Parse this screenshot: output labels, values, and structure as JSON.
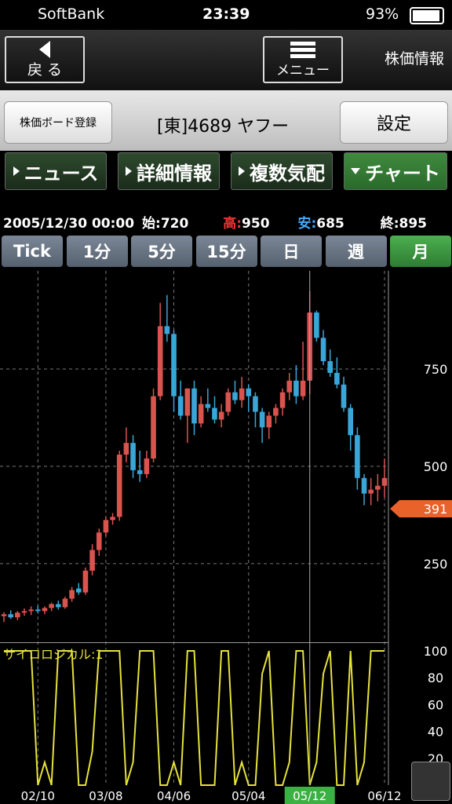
{
  "status_bar": {
    "carrier": "SoftBank",
    "time": "23:39",
    "battery": "93%"
  },
  "nav": {
    "back": "戻 る",
    "menu": "メニュー",
    "title": "株価情報"
  },
  "stock_row": {
    "register": "株価ボード登録",
    "name": "[東]4689 ヤフー",
    "settings": "設定"
  },
  "tabs": [
    "ニュース",
    "詳細情報",
    "複数気配",
    "チャート"
  ],
  "info": {
    "date": "2005/12/30 00:00",
    "open_label": "始:",
    "open": 720,
    "high_label": "高:",
    "high": 950,
    "low_label": "安:",
    "low": 685,
    "close_label": "終:",
    "close": 895
  },
  "periods": [
    "Tick",
    "1分",
    "5分",
    "15分",
    "日",
    "週",
    "月"
  ],
  "chart_data": [
    {
      "type": "candlestick",
      "categories": [
        null,
        null,
        null,
        null,
        null,
        "02/10",
        null,
        null,
        null,
        null,
        null,
        null,
        null,
        null,
        null,
        "03/08",
        null,
        null,
        null,
        null,
        null,
        null,
        null,
        null,
        null,
        "04/06",
        null,
        null,
        null,
        null,
        null,
        null,
        null,
        null,
        null,
        null,
        "05/04",
        null,
        null,
        null,
        null,
        null,
        null,
        null,
        null,
        "05/12",
        null,
        null,
        null,
        null,
        null,
        null,
        null,
        null,
        null,
        null,
        "06/12"
      ],
      "open": [
        115,
        120,
        112,
        124,
        128,
        132,
        128,
        136,
        146,
        138,
        160,
        186,
        176,
        232,
        285,
        330,
        362,
        370,
        530,
        560,
        490,
        480,
        520,
        680,
        860,
        840,
        680,
        630,
        700,
        610,
        660,
        650,
        620,
        640,
        690,
        670,
        700,
        680,
        640,
        600,
        630,
        650,
        690,
        720,
        680,
        720,
        895,
        830,
        770,
        740,
        710,
        650,
        580,
        470,
        430,
        440,
        450
      ],
      "high": [
        125,
        130,
        128,
        135,
        140,
        142,
        140,
        150,
        155,
        165,
        190,
        200,
        240,
        300,
        340,
        370,
        380,
        540,
        600,
        580,
        540,
        540,
        700,
        920,
        940,
        850,
        720,
        700,
        720,
        680,
        700,
        680,
        660,
        700,
        720,
        730,
        710,
        690,
        650,
        640,
        660,
        700,
        740,
        760,
        820,
        950,
        900,
        850,
        800,
        780,
        730,
        660,
        600,
        480,
        470,
        480,
        520
      ],
      "low": [
        100,
        108,
        105,
        116,
        118,
        122,
        120,
        128,
        132,
        134,
        152,
        170,
        170,
        220,
        270,
        320,
        350,
        360,
        510,
        470,
        460,
        470,
        510,
        670,
        820,
        640,
        620,
        560,
        580,
        600,
        640,
        610,
        600,
        630,
        660,
        650,
        640,
        600,
        560,
        570,
        610,
        630,
        670,
        660,
        670,
        685,
        820,
        760,
        730,
        700,
        640,
        540,
        440,
        400,
        400,
        410,
        420
      ],
      "close": [
        120,
        112,
        124,
        128,
        132,
        128,
        136,
        146,
        138,
        160,
        182,
        176,
        232,
        285,
        330,
        362,
        370,
        530,
        560,
        490,
        480,
        520,
        680,
        860,
        840,
        680,
        630,
        700,
        610,
        660,
        650,
        620,
        640,
        690,
        670,
        700,
        680,
        640,
        600,
        630,
        650,
        690,
        720,
        680,
        720,
        895,
        830,
        770,
        740,
        710,
        650,
        580,
        470,
        430,
        440,
        450,
        470
      ],
      "up_color": "#d9534f",
      "down_color": "#3aa6d8",
      "ylim": [
        48,
        1002
      ],
      "yticks": [
        250,
        500,
        750
      ],
      "grid": true,
      "crosshair": 45,
      "last_price": 391,
      "last_price_color": "#e8622a"
    },
    {
      "type": "line",
      "title": "サイコロジカル:1",
      "color": "#e6e23a",
      "values": [
        100,
        100,
        100,
        100,
        100,
        0,
        17,
        0,
        100,
        100,
        100,
        0,
        0,
        25,
        100,
        100,
        100,
        100,
        0,
        17,
        100,
        100,
        100,
        0,
        0,
        17,
        0,
        100,
        100,
        0,
        0,
        0,
        100,
        100,
        0,
        17,
        0,
        0,
        83,
        100,
        0,
        0,
        17,
        100,
        100,
        0,
        17,
        83,
        100,
        0,
        0,
        100,
        0,
        17,
        100,
        100,
        100
      ],
      "ylim": [
        0,
        100
      ],
      "yticks": [
        20,
        40,
        60,
        80,
        100
      ]
    }
  ]
}
